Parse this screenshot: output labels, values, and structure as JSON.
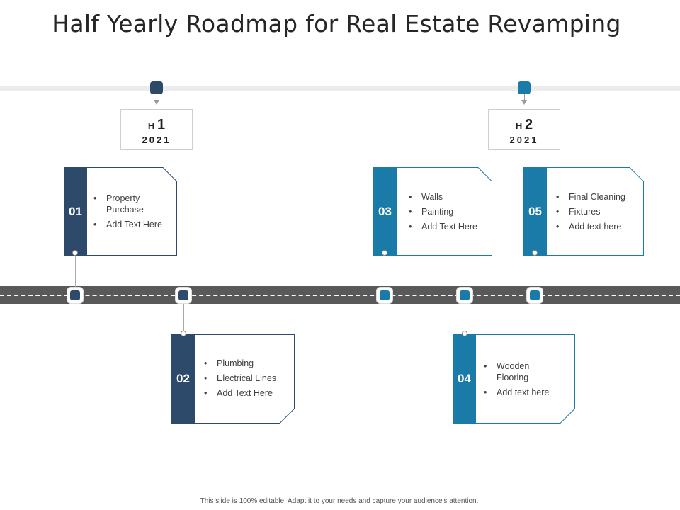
{
  "title": "Half Yearly Roadmap for Real Estate Revamping",
  "colors": {
    "dark": "#2e4a6b",
    "teal": "#1a7aa8",
    "road": "#595959"
  },
  "halves": [
    {
      "h": "H",
      "num": "1",
      "year": "2021"
    },
    {
      "h": "H",
      "num": "2",
      "year": "2021"
    }
  ],
  "cards": [
    {
      "number": "01",
      "items": [
        "Property Purchase",
        "Add Text Here"
      ]
    },
    {
      "number": "02",
      "items": [
        "Plumbing",
        "Electrical Lines",
        "Add Text Here"
      ]
    },
    {
      "number": "03",
      "items": [
        "Walls",
        "Painting",
        "Add Text Here"
      ]
    },
    {
      "number": "04",
      "items": [
        "Wooden Flooring",
        "Add text here"
      ]
    },
    {
      "number": "05",
      "items": [
        "Final Cleaning",
        "Fixtures",
        "Add text here"
      ]
    }
  ],
  "footer": "This slide is 100% editable. Adapt it to your needs and capture your audience's attention."
}
